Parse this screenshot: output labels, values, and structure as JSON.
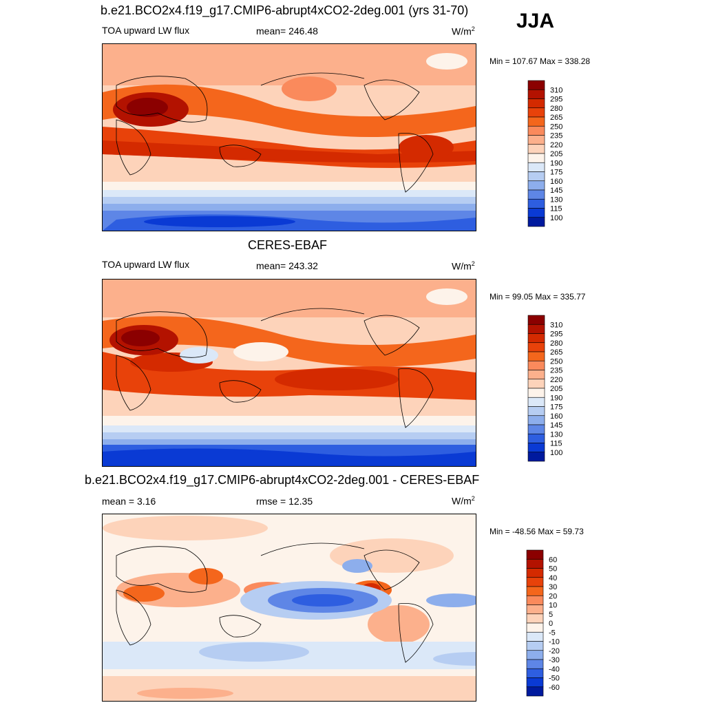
{
  "season": "JJA",
  "chart_data": [
    {
      "type": "heatmap",
      "title": "b.e21.BCO2x4.f19_g17.CMIP6-abrupt4xCO2-2deg.001 (yrs 31-70)",
      "left_label": "TOA upward LW flux",
      "center_label": "mean= 246.48",
      "units": "W/m",
      "units_sup": "2",
      "range_text": "Min = 107.67 Max = 338.28",
      "min": 107.67,
      "max": 338.28,
      "mean": 246.48,
      "colorbar": {
        "labels": [
          "310",
          "295",
          "280",
          "265",
          "250",
          "235",
          "220",
          "205",
          "190",
          "175",
          "160",
          "145",
          "130",
          "115",
          "100"
        ],
        "colors": [
          "#8b0000",
          "#b31200",
          "#d42a00",
          "#e8420a",
          "#f4661c",
          "#fa8a5c",
          "#fcb08c",
          "#fdd3ba",
          "#fdf3ea",
          "#dbe8f8",
          "#b6cdf2",
          "#8daeec",
          "#5e86e6",
          "#2e5ee0",
          "#0a3ad4",
          "#001a9e"
        ]
      }
    },
    {
      "type": "heatmap",
      "title": "CERES-EBAF",
      "left_label": "TOA upward LW flux",
      "center_label": "mean= 243.32",
      "units": "W/m",
      "units_sup": "2",
      "range_text": "Min =  99.05 Max = 335.77",
      "min": 99.05,
      "max": 335.77,
      "mean": 243.32,
      "colorbar": {
        "labels": [
          "310",
          "295",
          "280",
          "265",
          "250",
          "235",
          "220",
          "205",
          "190",
          "175",
          "160",
          "145",
          "130",
          "115",
          "100"
        ],
        "colors": [
          "#8b0000",
          "#b31200",
          "#d42a00",
          "#e8420a",
          "#f4661c",
          "#fa8a5c",
          "#fcb08c",
          "#fdd3ba",
          "#fdf3ea",
          "#dbe8f8",
          "#b6cdf2",
          "#8daeec",
          "#5e86e6",
          "#2e5ee0",
          "#0a3ad4",
          "#001a9e"
        ]
      }
    },
    {
      "type": "heatmap",
      "title": "b.e21.BCO2x4.f19_g17.CMIP6-abrupt4xCO2-2deg.001 - CERES-EBAF",
      "left_label": "mean =   3.16",
      "center_label": "rmse =  12.35",
      "units": "W/m",
      "units_sup": "2",
      "range_text": "Min = -48.56 Max =  59.73",
      "min": -48.56,
      "max": 59.73,
      "mean": 3.16,
      "rmse": 12.35,
      "colorbar": {
        "labels": [
          "60",
          "50",
          "40",
          "30",
          "20",
          "10",
          "5",
          "0",
          "-5",
          "-10",
          "-20",
          "-30",
          "-40",
          "-50",
          "-60"
        ],
        "colors": [
          "#8b0000",
          "#b31200",
          "#d42a00",
          "#e8420a",
          "#f4661c",
          "#fa8a5c",
          "#fcb08c",
          "#fdd3ba",
          "#fdf3ea",
          "#dbe8f8",
          "#b6cdf2",
          "#8daeec",
          "#5e86e6",
          "#2e5ee0",
          "#0a3ad4",
          "#001a9e"
        ]
      }
    }
  ]
}
